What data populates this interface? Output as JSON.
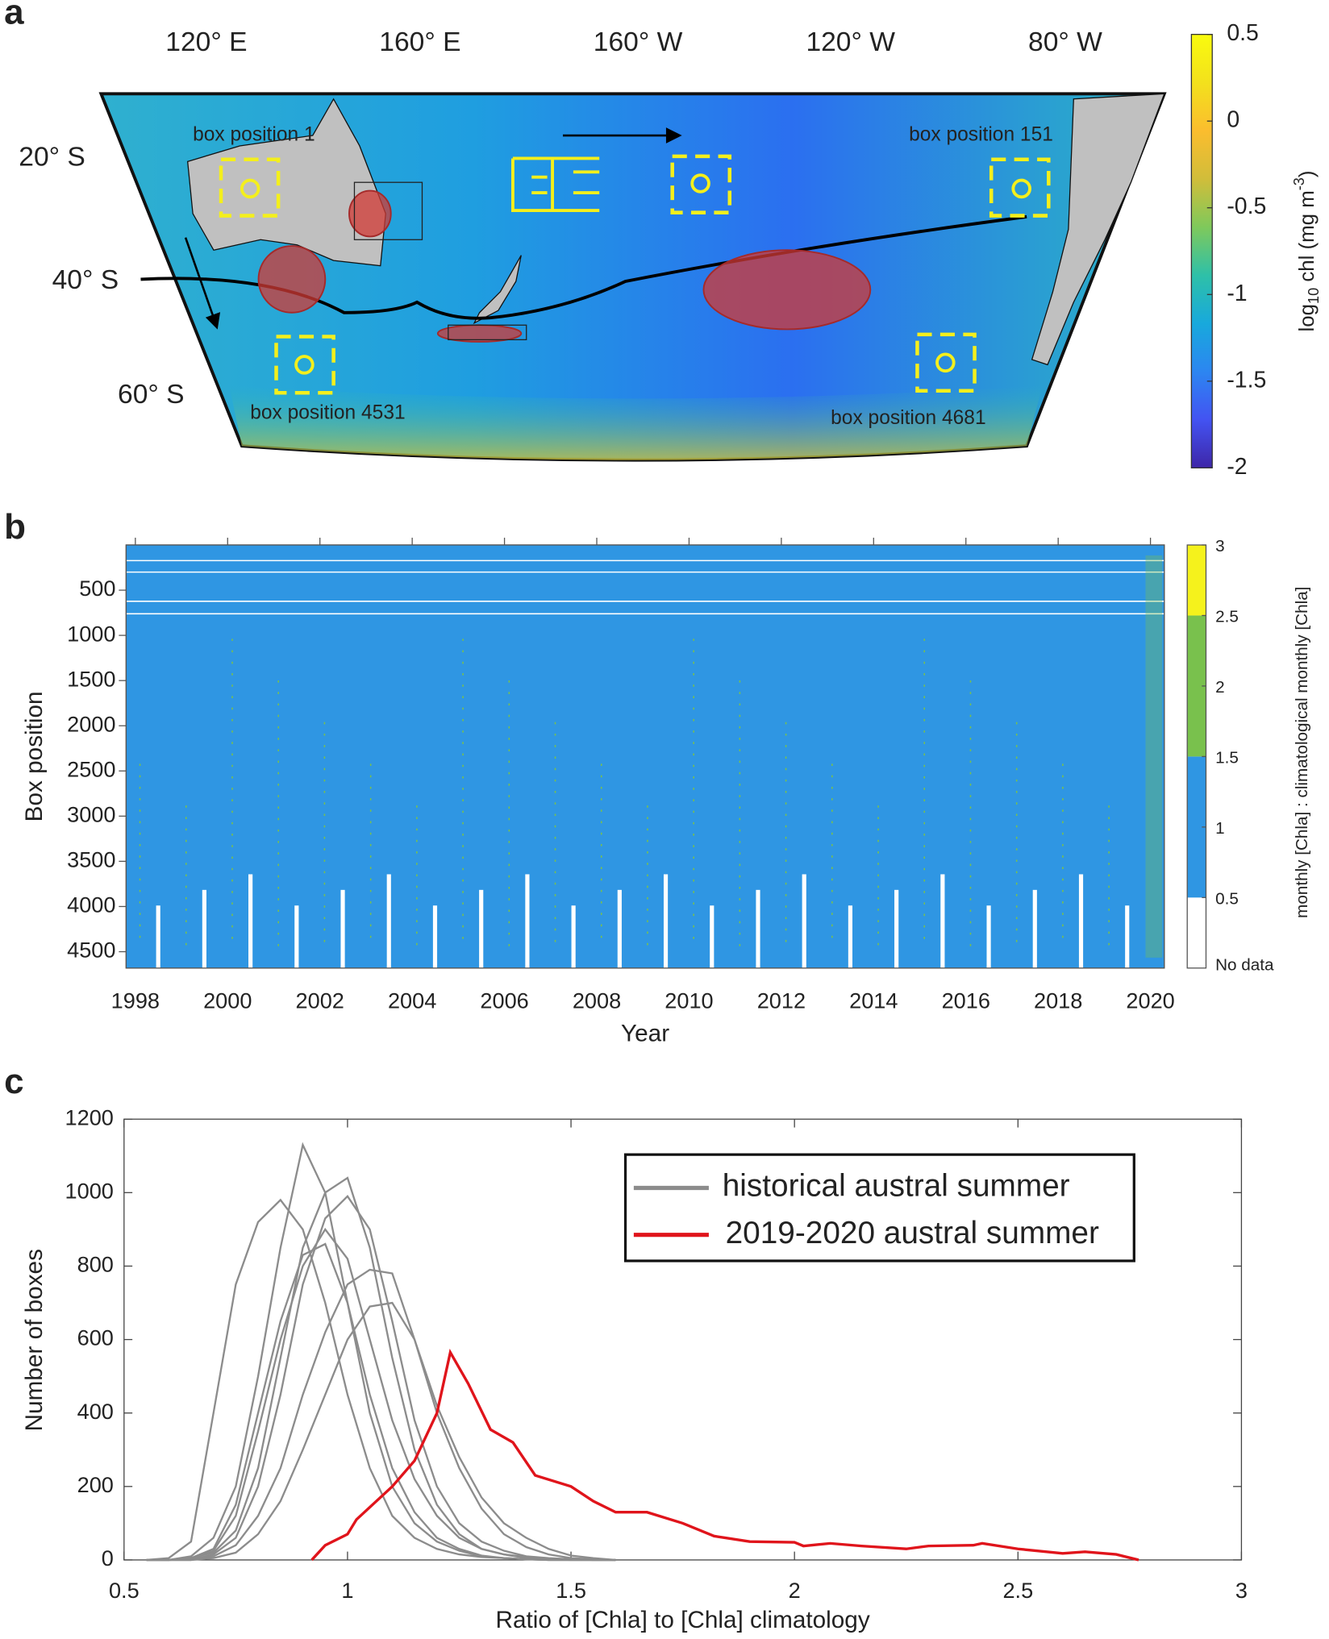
{
  "chart_data": [
    {
      "type": "map",
      "panel_label": "a",
      "lon_labels": [
        "120° E",
        "160° E",
        "160° W",
        "120° W",
        "80° W"
      ],
      "lat_labels": [
        "20° S",
        "40° S",
        "60° S"
      ],
      "annotations": [
        "box position 1",
        "box position 151",
        "box position 4531",
        "box position 4681"
      ],
      "colorbar": {
        "lim": [
          -2,
          0.5
        ],
        "ticks": [
          0.5,
          0,
          -0.5,
          -1,
          -1.5,
          -2
        ],
        "label_parts": [
          "log",
          "10",
          " chl (mg m",
          "-3",
          ")"
        ],
        "colormap": [
          "#3e26a8",
          "#4353f2",
          "#2c86f1",
          "#18a9dc",
          "#2ec0a8",
          "#7fc95b",
          "#d1bd3a",
          "#fbbd2e",
          "#f3e11c",
          "#f9fb0e"
        ]
      }
    },
    {
      "type": "heatmap",
      "panel_label": "b",
      "xlabel": "Year",
      "ylabel": "Box position",
      "xlim": [
        1997.8,
        2020.3
      ],
      "xticks": [
        1998,
        2000,
        2002,
        2004,
        2006,
        2008,
        2010,
        2012,
        2014,
        2016,
        2018,
        2020
      ],
      "ylim": [
        0,
        4681
      ],
      "yticks": [
        500,
        1000,
        1500,
        2000,
        2500,
        3000,
        3500,
        4000,
        4500
      ],
      "y_reversed": true,
      "colorbar": {
        "lim": [
          0,
          3
        ],
        "ticks": [
          0.5,
          1,
          1.5,
          2,
          2.5,
          3
        ],
        "bounds": [
          0.5,
          1.5,
          2.5,
          3
        ],
        "colors": [
          "#2f96e3",
          "#79c14d",
          "#f5f21c"
        ],
        "nodata_label": "No data",
        "nodata_color": "#ffffff",
        "label": "monthly [Chla] : climatological monthly [Chla]"
      }
    },
    {
      "type": "line",
      "panel_label": "c",
      "xlabel": "Ratio of [Chla] to [Chla] climatology",
      "ylabel": "Number of boxes",
      "xlim": [
        0.5,
        3
      ],
      "xticks": [
        0.5,
        1,
        1.5,
        2,
        2.5,
        3
      ],
      "ylim": [
        0,
        1200
      ],
      "yticks": [
        0,
        200,
        400,
        600,
        800,
        1000,
        1200
      ],
      "series": [
        {
          "name": "historical austral summer",
          "color": "#8c8c8c",
          "x": [
            0.55,
            0.6,
            0.65,
            0.7,
            0.75,
            0.8,
            0.85,
            0.9,
            0.95,
            1.0,
            1.05,
            1.1,
            1.15,
            1.2,
            1.25,
            1.3,
            1.35,
            1.4,
            1.45,
            1.5,
            1.55,
            1.6
          ],
          "values": [
            [
              0,
              5,
              50,
              400,
              750,
              920,
              980,
              900,
              700,
              450,
              250,
              120,
              60,
              30,
              15,
              8,
              5,
              2,
              0,
              0,
              0,
              0
            ],
            [
              0,
              0,
              10,
              60,
              200,
              500,
              850,
              1130,
              1000,
              700,
              400,
              200,
              100,
              50,
              25,
              10,
              5,
              2,
              0,
              0,
              0,
              0
            ],
            [
              0,
              0,
              5,
              20,
              80,
              250,
              550,
              850,
              1000,
              1040,
              850,
              550,
              300,
              150,
              70,
              30,
              15,
              5,
              2,
              0,
              0,
              0
            ],
            [
              0,
              0,
              0,
              10,
              40,
              120,
              250,
              450,
              620,
              750,
              790,
              780,
              600,
              400,
              250,
              140,
              70,
              35,
              15,
              5,
              2,
              0
            ],
            [
              0,
              0,
              5,
              30,
              150,
              400,
              650,
              830,
              860,
              700,
              450,
              250,
              130,
              60,
              30,
              12,
              5,
              2,
              0,
              0,
              0,
              0
            ],
            [
              0,
              0,
              0,
              15,
              60,
              200,
              450,
              750,
              930,
              990,
              900,
              650,
              380,
              200,
              100,
              50,
              25,
              10,
              5,
              2,
              0,
              0
            ],
            [
              0,
              0,
              2,
              25,
              120,
              350,
              600,
              800,
              900,
              820,
              600,
              380,
              220,
              120,
              60,
              30,
              15,
              8,
              4,
              2,
              0,
              0
            ],
            [
              0,
              0,
              0,
              5,
              20,
              70,
              160,
              300,
              450,
              600,
              690,
              700,
              600,
              420,
              280,
              170,
              100,
              60,
              30,
              12,
              5,
              0
            ]
          ]
        },
        {
          "name": "2019-2020 austral summer",
          "color": "#e0141b",
          "x": [
            0.92,
            0.95,
            1.0,
            1.02,
            1.1,
            1.15,
            1.2,
            1.23,
            1.27,
            1.32,
            1.37,
            1.42,
            1.5,
            1.55,
            1.6,
            1.67,
            1.75,
            1.82,
            1.9,
            2.0,
            2.02,
            2.08,
            2.15,
            2.25,
            2.3,
            2.4,
            2.42,
            2.5,
            2.6,
            2.65,
            2.72,
            2.77
          ],
          "values": [
            0,
            40,
            70,
            110,
            200,
            270,
            400,
            565,
            480,
            355,
            320,
            230,
            200,
            160,
            130,
            130,
            100,
            65,
            50,
            48,
            38,
            45,
            38,
            30,
            38,
            40,
            45,
            30,
            18,
            22,
            15,
            0
          ]
        }
      ]
    }
  ]
}
